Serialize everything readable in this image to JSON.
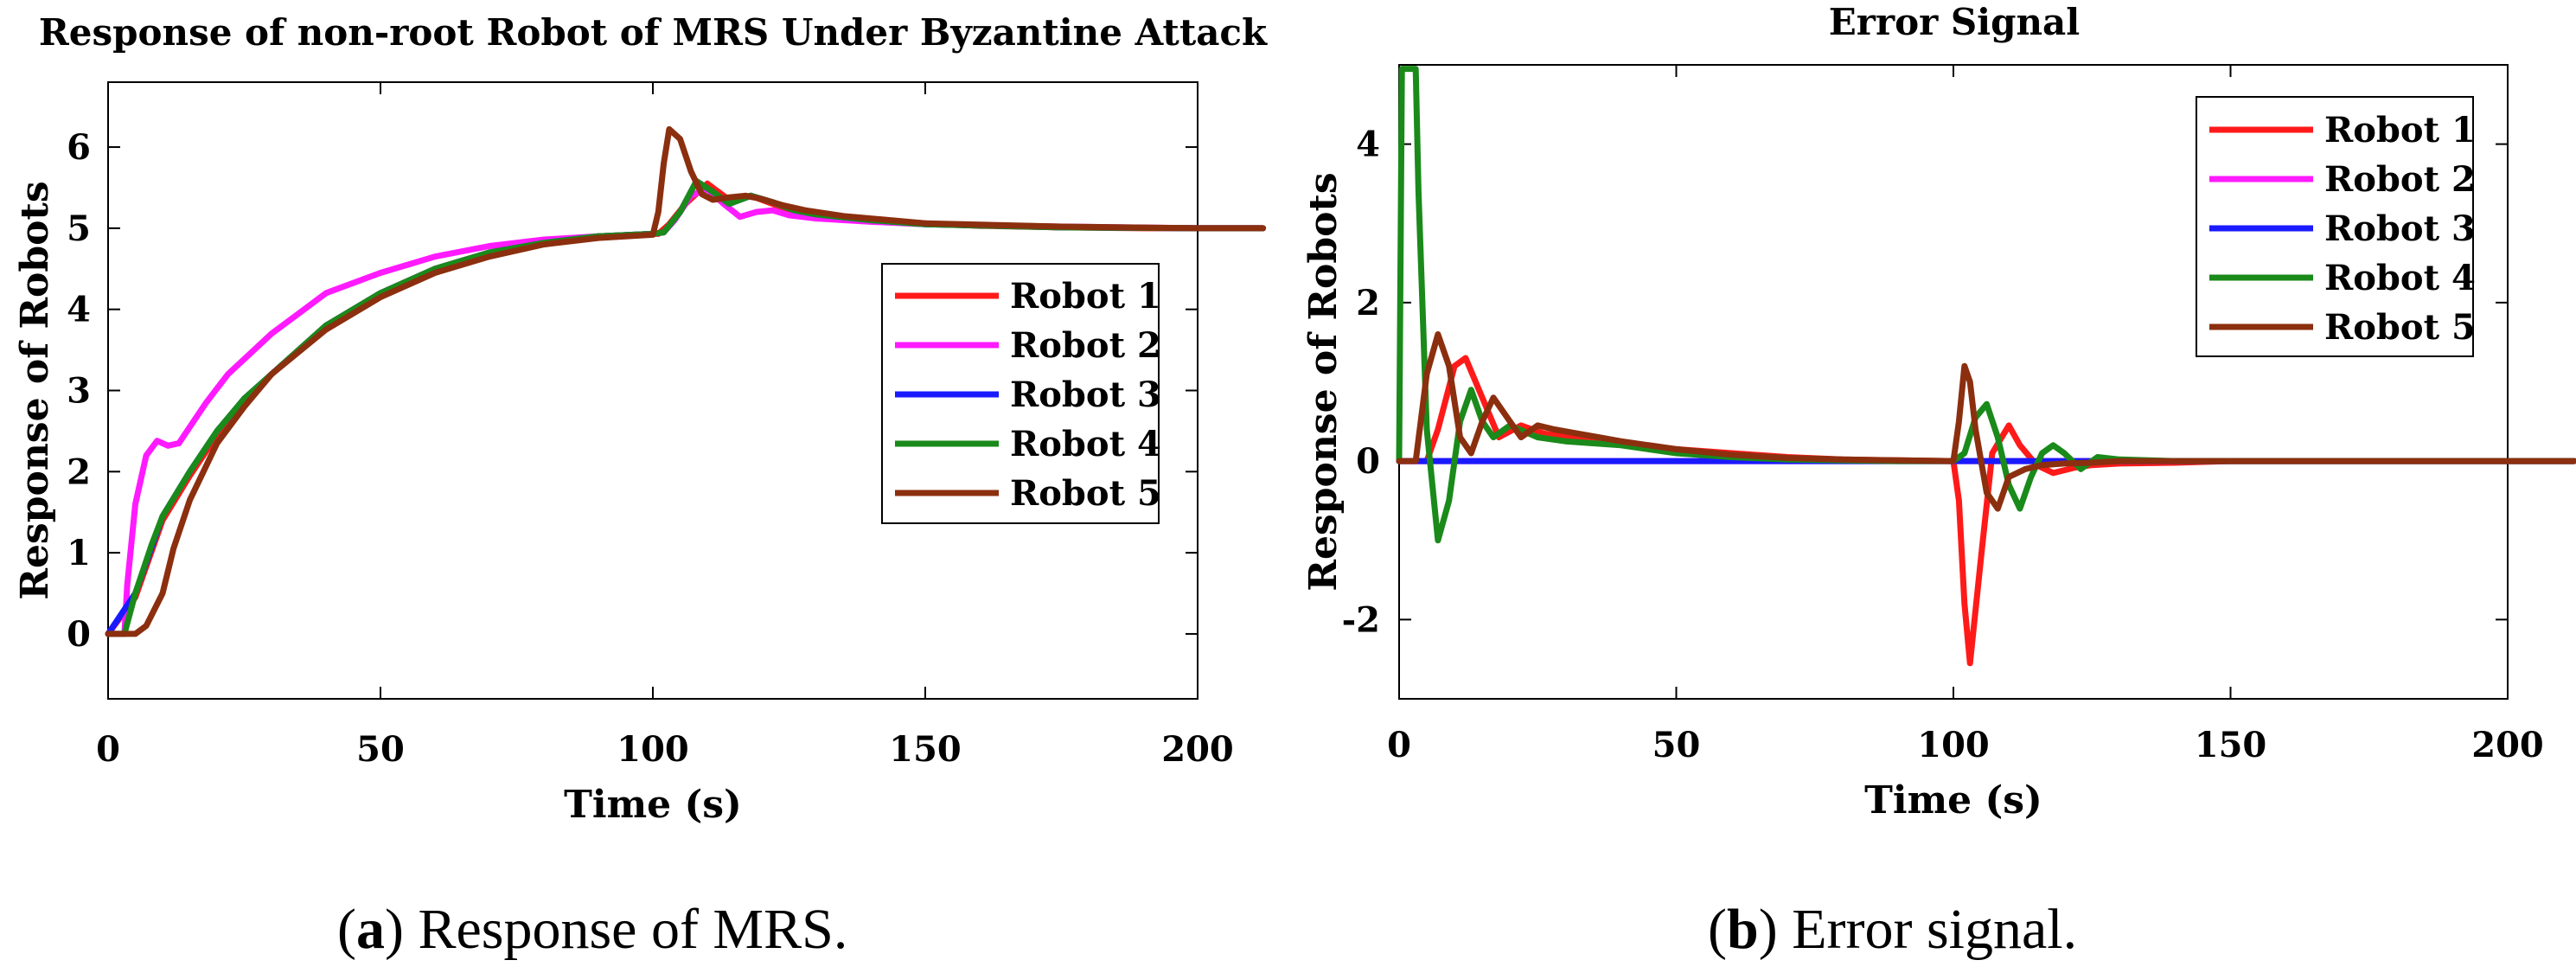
{
  "chart_data": [
    {
      "type": "line",
      "title": "Response of non-root Robot of MRS Under Byzantine Attack",
      "xlabel": "Time (s)",
      "ylabel": "Response of Robots",
      "xlim": [
        0,
        200
      ],
      "ylim": [
        -0.8,
        6.8
      ],
      "xticks": [
        0,
        50,
        100,
        150,
        200
      ],
      "yticks": [
        0,
        1,
        2,
        3,
        4,
        5,
        6
      ],
      "xtick_labels": [
        "0",
        "50",
        "100",
        "150",
        "200"
      ],
      "ytick_labels": [
        "0",
        "1",
        "2",
        "3",
        "4",
        "5",
        "6"
      ],
      "grid": false,
      "legend_position": "center-right",
      "caption_letter": "a",
      "caption_text": "Response of MRS.",
      "series": [
        {
          "name": "Robot 1",
          "color": "#ff1a1a",
          "x": [
            0,
            5,
            10,
            15,
            20,
            25,
            30,
            40,
            50,
            60,
            70,
            80,
            90,
            100,
            101,
            103,
            106,
            110,
            114,
            118,
            122,
            126,
            130,
            140,
            150,
            160,
            175,
            190,
            200,
            212
          ],
          "y": [
            0,
            0.45,
            1.4,
            1.95,
            2.45,
            2.85,
            3.2,
            3.8,
            4.2,
            4.5,
            4.7,
            4.82,
            4.9,
            4.93,
            4.93,
            5.05,
            5.3,
            5.55,
            5.35,
            5.4,
            5.3,
            5.2,
            5.17,
            5.1,
            5.06,
            5.03,
            5.01,
            5.0,
            5.0,
            5.0
          ]
        },
        {
          "name": "Robot 2",
          "color": "#ff1aff",
          "x": [
            0,
            3,
            3.5,
            5,
            7,
            9,
            11,
            13,
            15,
            18,
            22,
            26,
            30,
            35,
            40,
            50,
            60,
            70,
            80,
            90,
            100,
            102,
            104,
            107,
            110,
            113,
            116,
            119,
            122,
            125,
            130,
            140,
            150,
            175,
            200,
            212
          ],
          "y": [
            0,
            0,
            0.6,
            1.6,
            2.2,
            2.38,
            2.32,
            2.35,
            2.55,
            2.85,
            3.2,
            3.45,
            3.7,
            3.95,
            4.2,
            4.45,
            4.65,
            4.78,
            4.86,
            4.9,
            4.93,
            4.95,
            5.1,
            5.4,
            5.48,
            5.3,
            5.14,
            5.2,
            5.22,
            5.16,
            5.12,
            5.08,
            5.05,
            5.02,
            5.0,
            5.0
          ]
        },
        {
          "name": "Robot 3",
          "color": "#1a1aff",
          "x": [
            0,
            5,
            10,
            15,
            20,
            25,
            30,
            40,
            50,
            60,
            70,
            80,
            90,
            100,
            102,
            105,
            108,
            111,
            114,
            118,
            122,
            126,
            130,
            140,
            150,
            175,
            200,
            212
          ],
          "y": [
            0,
            0.5,
            1.45,
            2.0,
            2.5,
            2.9,
            3.2,
            3.8,
            4.2,
            4.5,
            4.7,
            4.82,
            4.9,
            4.93,
            4.95,
            5.2,
            5.58,
            5.45,
            5.3,
            5.4,
            5.32,
            5.22,
            5.17,
            5.1,
            5.05,
            5.01,
            5.0,
            5.0
          ]
        },
        {
          "name": "Robot 4",
          "color": "#1a8a1a",
          "x": [
            0,
            3,
            5,
            8,
            10,
            15,
            20,
            25,
            30,
            40,
            50,
            60,
            70,
            80,
            90,
            100,
            102,
            105,
            108,
            111,
            114,
            118,
            122,
            126,
            130,
            140,
            150,
            175,
            200,
            212
          ],
          "y": [
            0,
            0,
            0.5,
            1.1,
            1.45,
            2.0,
            2.5,
            2.9,
            3.2,
            3.8,
            4.2,
            4.5,
            4.7,
            4.82,
            4.9,
            4.93,
            4.95,
            5.2,
            5.58,
            5.45,
            5.3,
            5.4,
            5.32,
            5.22,
            5.17,
            5.1,
            5.05,
            5.01,
            5.0,
            5.0
          ]
        },
        {
          "name": "Robot 5",
          "color": "#8b2f0f",
          "x": [
            0,
            5,
            7,
            10,
            12,
            15,
            20,
            25,
            30,
            40,
            50,
            60,
            70,
            80,
            90,
            100,
            101,
            102,
            103,
            105,
            107,
            109,
            111,
            114,
            117,
            120,
            124,
            128,
            135,
            150,
            175,
            200,
            212
          ],
          "y": [
            0,
            0,
            0.1,
            0.5,
            1.05,
            1.65,
            2.35,
            2.8,
            3.2,
            3.75,
            4.15,
            4.45,
            4.65,
            4.8,
            4.88,
            4.92,
            5.2,
            5.8,
            6.22,
            6.1,
            5.7,
            5.42,
            5.35,
            5.38,
            5.4,
            5.36,
            5.28,
            5.22,
            5.15,
            5.06,
            5.02,
            5.0,
            5.0
          ]
        }
      ]
    },
    {
      "type": "line",
      "title": "Error Signal",
      "xlabel": "Time (s)",
      "ylabel": "Response of Robots",
      "xlim": [
        0,
        200
      ],
      "ylim": [
        -3,
        5
      ],
      "xticks": [
        0,
        50,
        100,
        150,
        200
      ],
      "yticks": [
        -2,
        0,
        2,
        4
      ],
      "xtick_labels": [
        "0",
        "50",
        "100",
        "150",
        "200"
      ],
      "ytick_labels": [
        "-2",
        "0",
        "2",
        "4"
      ],
      "grid": false,
      "legend_position": "top-right",
      "caption_letter": "b",
      "caption_text": "Error signal.",
      "series": [
        {
          "name": "Robot  1",
          "color": "#ff1a1a",
          "x": [
            0,
            5,
            7,
            10,
            12,
            15,
            18,
            22,
            26,
            30,
            35,
            40,
            50,
            60,
            70,
            80,
            90,
            100,
            101,
            102,
            103,
            105,
            107,
            110,
            112,
            115,
            118,
            122,
            125,
            130,
            140,
            150,
            175,
            200,
            212
          ],
          "y": [
            0,
            0,
            0.4,
            1.2,
            1.3,
            0.8,
            0.3,
            0.45,
            0.35,
            0.3,
            0.25,
            0.22,
            0.15,
            0.1,
            0.05,
            0.02,
            0.01,
            0,
            -0.5,
            -1.8,
            -2.55,
            -1.2,
            0.1,
            0.45,
            0.2,
            -0.05,
            -0.15,
            -0.08,
            -0.05,
            -0.03,
            -0.02,
            0,
            0,
            0,
            0
          ]
        },
        {
          "name": "Robot  2",
          "color": "#ff1aff",
          "x": [
            0,
            50,
            100,
            200,
            212
          ],
          "y": [
            0,
            0,
            0,
            0,
            0
          ]
        },
        {
          "name": "Robot  3",
          "color": "#1a1aff",
          "x": [
            0,
            50,
            100,
            200,
            212
          ],
          "y": [
            0,
            0,
            0,
            0,
            0
          ]
        },
        {
          "name": "Robot  4",
          "color": "#1a8a1a",
          "x": [
            0,
            0.5,
            1,
            3,
            3.5,
            5,
            7,
            9,
            11,
            13,
            15,
            17,
            20,
            25,
            30,
            40,
            50,
            60,
            70,
            80,
            90,
            100,
            102,
            104,
            106,
            108,
            110,
            112,
            114,
            116,
            118,
            120,
            123,
            126,
            130,
            140,
            150,
            175,
            200,
            212
          ],
          "y": [
            0,
            4.95,
            4.95,
            4.95,
            3.4,
            0.4,
            -1.0,
            -0.5,
            0.5,
            0.9,
            0.5,
            0.3,
            0.45,
            0.3,
            0.25,
            0.2,
            0.1,
            0.05,
            0.02,
            0.01,
            0,
            0,
            0.1,
            0.55,
            0.72,
            0.3,
            -0.3,
            -0.6,
            -0.2,
            0.1,
            0.2,
            0.1,
            -0.1,
            0.05,
            0.02,
            0,
            0,
            0,
            0,
            0
          ]
        },
        {
          "name": "Robot  5",
          "color": "#8b2f0f",
          "x": [
            0,
            3,
            5,
            7,
            9,
            11,
            13,
            15,
            17,
            19,
            22,
            25,
            28,
            32,
            36,
            40,
            50,
            60,
            70,
            80,
            90,
            100,
            101,
            102,
            103,
            104,
            106,
            108,
            110,
            113,
            116,
            120,
            125,
            130,
            150,
            175,
            200,
            212
          ],
          "y": [
            0,
            0,
            1.1,
            1.6,
            1.2,
            0.3,
            0.1,
            0.5,
            0.8,
            0.6,
            0.3,
            0.45,
            0.4,
            0.35,
            0.3,
            0.25,
            0.15,
            0.08,
            0.04,
            0.02,
            0.01,
            0,
            0.5,
            1.2,
            1.0,
            0.4,
            -0.4,
            -0.6,
            -0.2,
            -0.1,
            -0.05,
            -0.03,
            -0.02,
            0,
            0,
            0,
            0,
            0
          ]
        }
      ]
    }
  ]
}
